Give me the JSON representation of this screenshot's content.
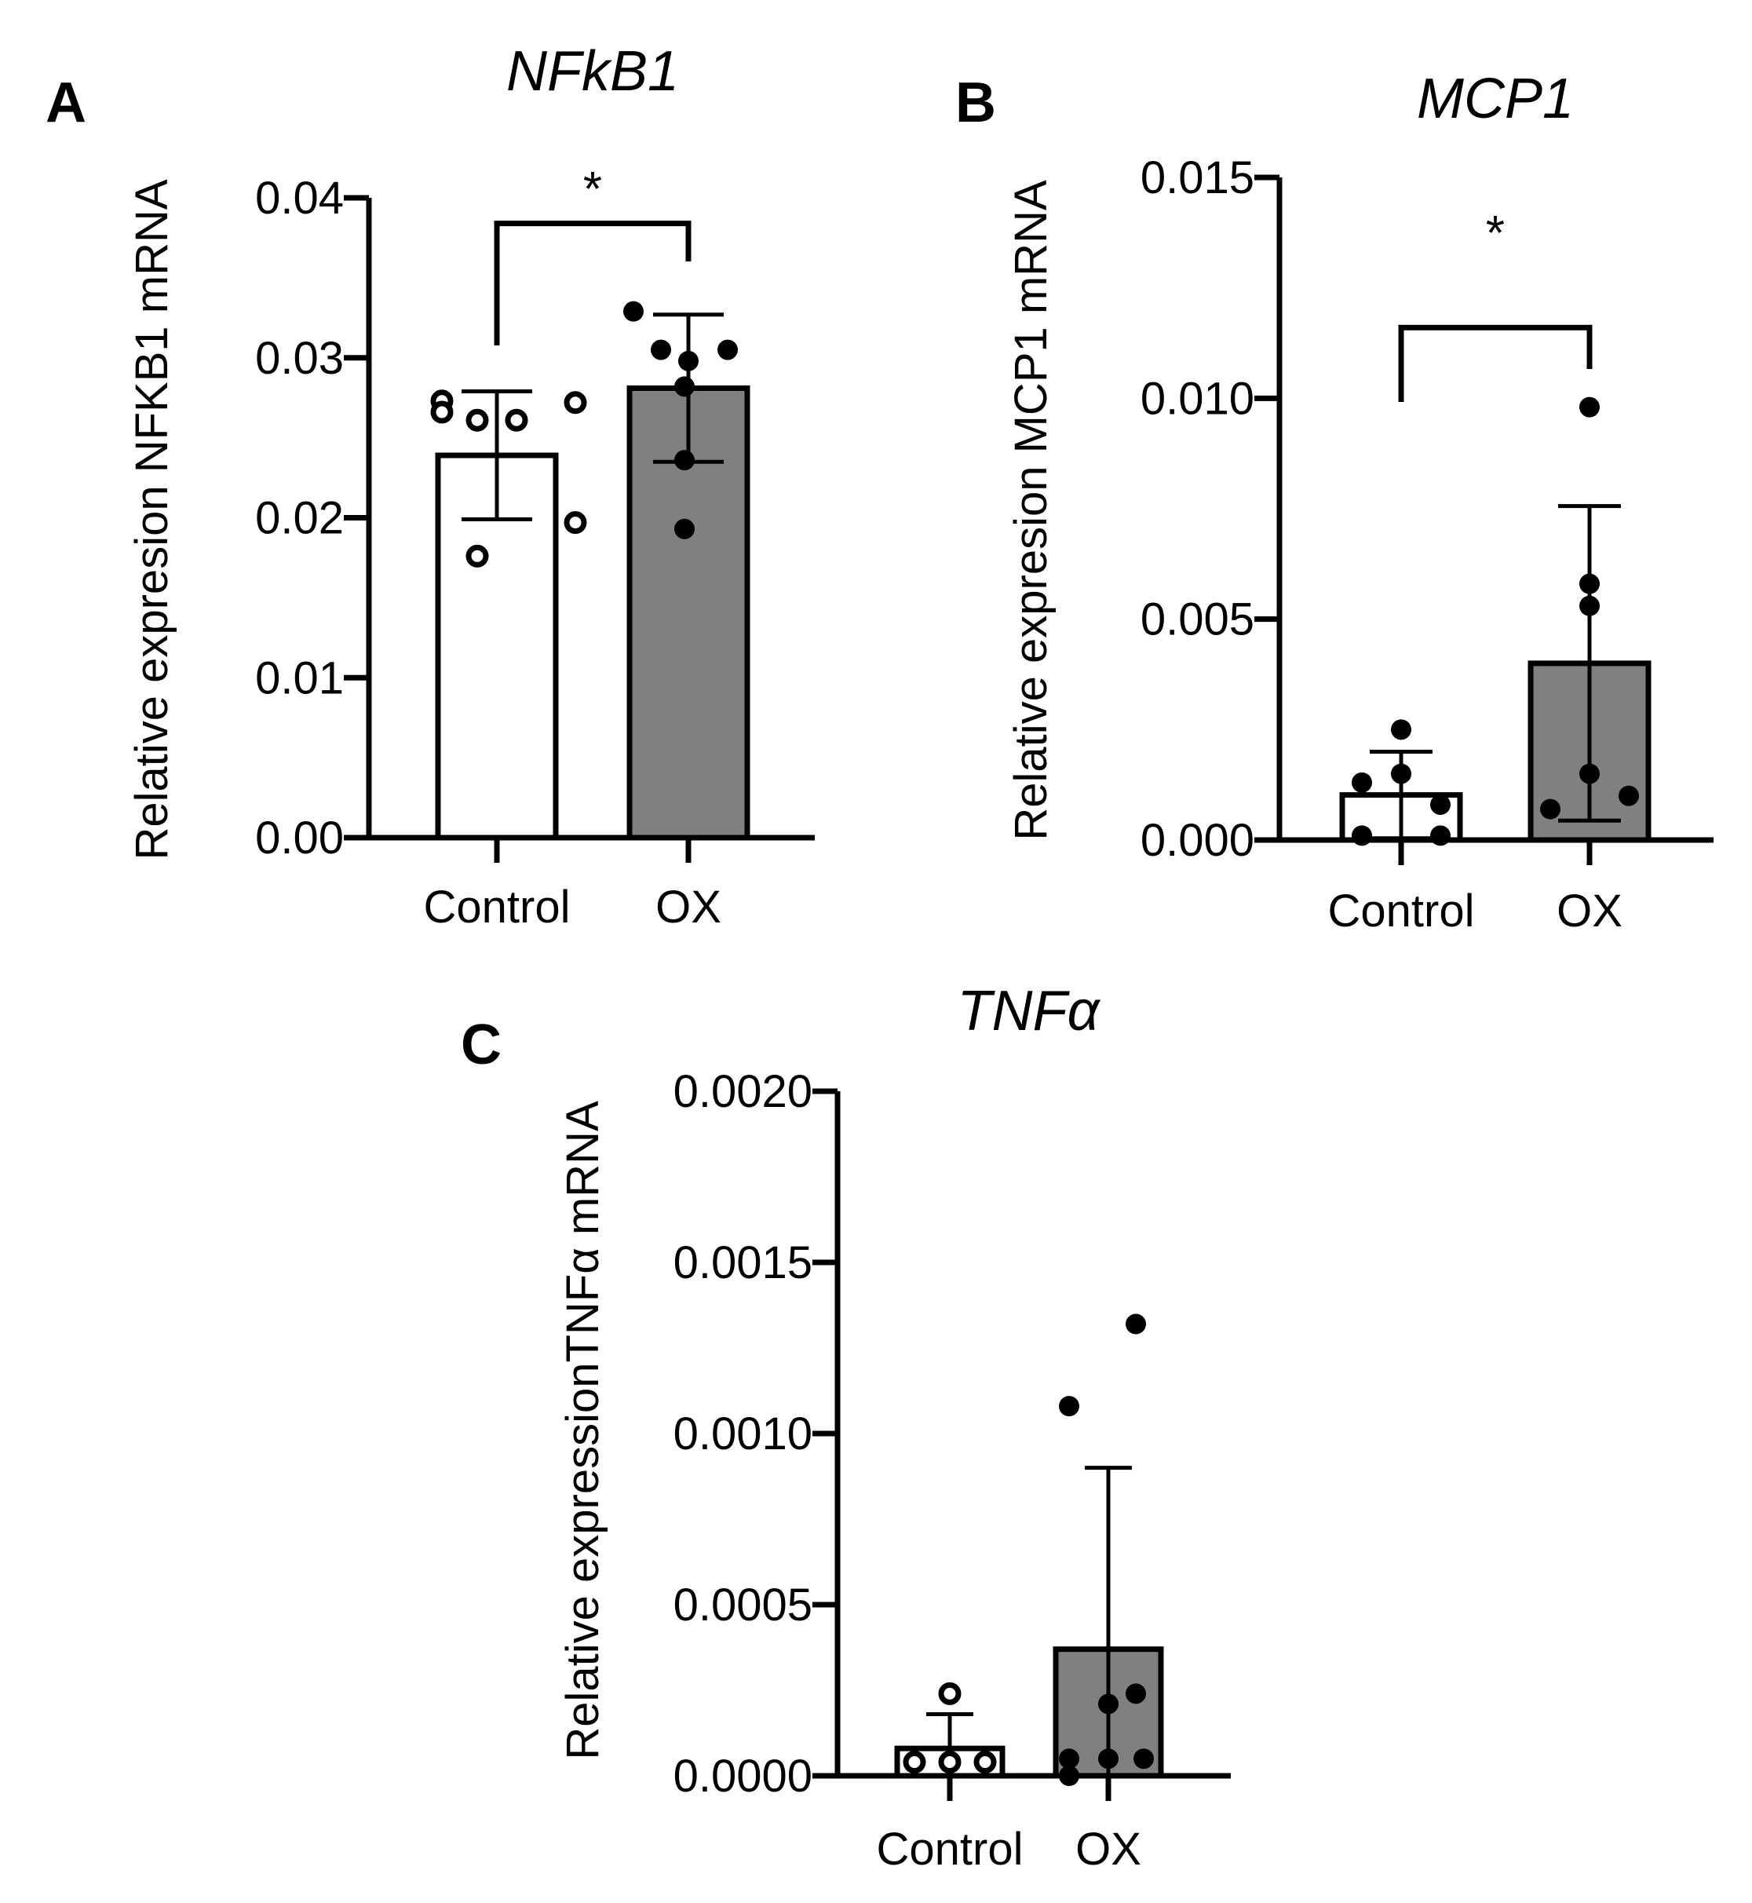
{
  "chart_data": [
    {
      "panel": "A",
      "type": "bar",
      "title": "NFkB1",
      "ylabel": "Relative expresion NFKB1 mRNA",
      "xlabel": "",
      "categories": [
        "Control",
        "OX"
      ],
      "values": [
        0.0239,
        0.0281
      ],
      "sd": [
        0.004,
        0.0046
      ],
      "fill_colors": [
        "#ffffff",
        "#808080"
      ],
      "marker_styles": [
        "open",
        "filled"
      ],
      "points": [
        [
          0.0273,
          0.0272,
          0.0261,
          0.0261,
          0.0266,
          0.0197,
          0.0176
        ],
        [
          0.0329,
          0.0305,
          0.0305,
          0.0298,
          0.0282,
          0.0236,
          0.0193
        ]
      ],
      "yticks": [
        "0.00",
        "0.01",
        "0.02",
        "0.03",
        "0.04"
      ],
      "ylim": [
        0,
        0.04
      ],
      "significance": {
        "groups": [
          "Control",
          "OX"
        ],
        "label": "*",
        "y": 0.0384
      },
      "grid": false
    },
    {
      "panel": "B",
      "type": "bar",
      "title": "MCP1",
      "ylabel": "Relative expresion MCP1 mRNA",
      "xlabel": "",
      "categories": [
        "Control",
        "OX"
      ],
      "values": [
        0.00102,
        0.004
      ],
      "sd": [
        0.00098,
        0.00356
      ],
      "fill_colors": [
        "#ffffff",
        "#808080"
      ],
      "marker_styles": [
        "filled",
        "filled"
      ],
      "points": [
        [
          0.0025,
          0.0015,
          0.0013,
          0.0008,
          0.0001,
          0.0001
        ],
        [
          0.0098,
          0.0058,
          0.0053,
          0.0015,
          0.0007,
          0.001
        ]
      ],
      "yticks": [
        "0.000",
        "0.005",
        "0.010",
        "0.015"
      ],
      "ylim": [
        0,
        0.015
      ],
      "significance": {
        "groups": [
          "Control",
          "OX"
        ],
        "label": "*",
        "y": 0.0116
      },
      "grid": false
    },
    {
      "panel": "C",
      "type": "bar",
      "title": "TNFα",
      "ylabel": "Relative expressionTNFα mRNA",
      "xlabel": "",
      "categories": [
        "Control",
        "OX"
      ],
      "values": [
        8e-05,
        0.00037
      ],
      "sd": [
        0.0001,
        0.00053
      ],
      "fill_colors": [
        "#ffffff",
        "#808080"
      ],
      "marker_styles": [
        "open",
        "filled"
      ],
      "points": [
        [
          0.00024,
          4e-05,
          4e-05,
          4e-05
        ],
        [
          0.00132,
          0.00108,
          0.00024,
          0.00021,
          5e-05,
          5e-05,
          5e-05,
          0.0
        ]
      ],
      "yticks": [
        "0.0000",
        "0.0005",
        "0.0010",
        "0.0015",
        "0.0020"
      ],
      "ylim": [
        0,
        0.002
      ],
      "significance": null,
      "grid": false
    }
  ]
}
